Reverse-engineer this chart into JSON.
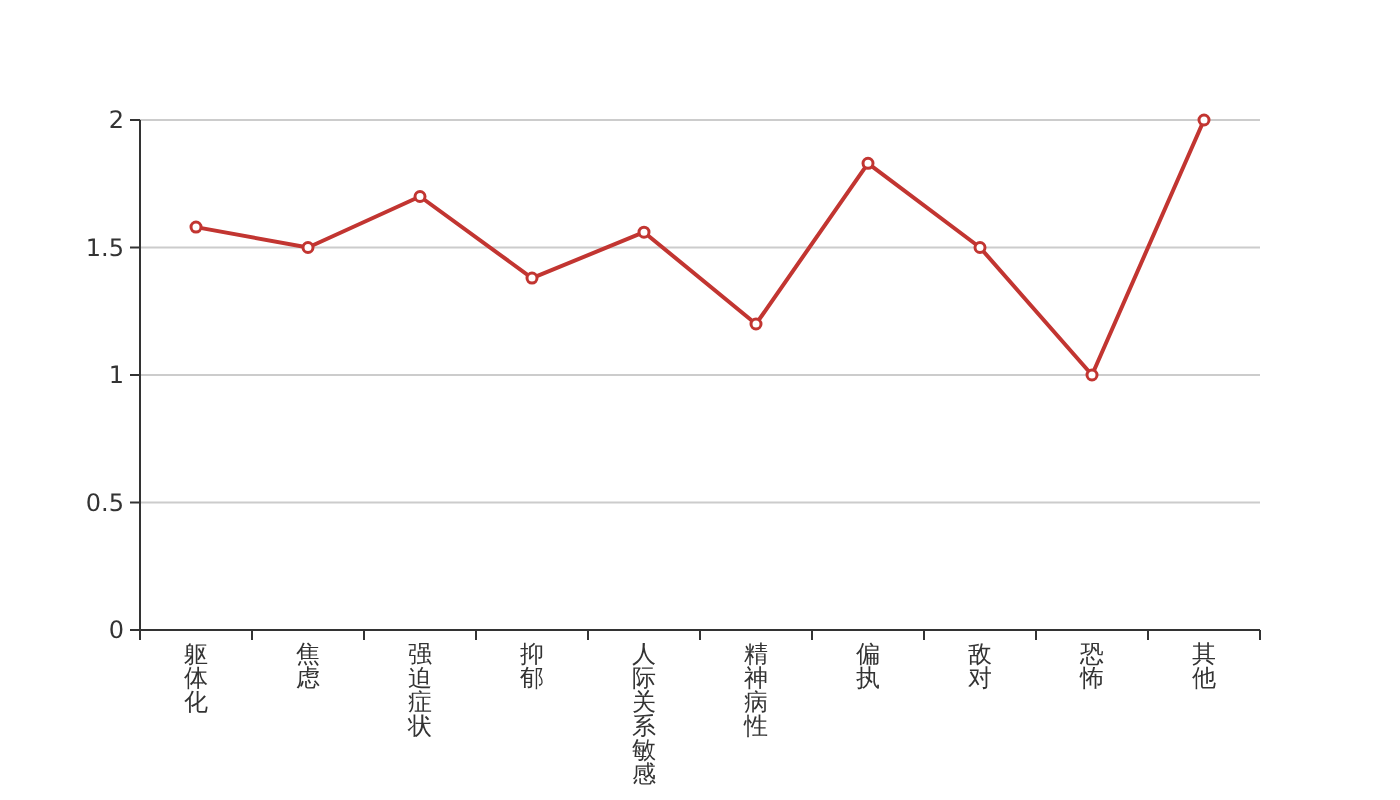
{
  "chart_data": {
    "type": "line",
    "categories": [
      "躯体化",
      "焦虑",
      "强迫症状",
      "抑郁",
      "人际关系敏感",
      "精神病性",
      "偏执",
      "敌对",
      "恐怖",
      "其他"
    ],
    "series": [
      {
        "color": "#c23531",
        "values": [
          1.58,
          1.5,
          1.7,
          1.38,
          1.56,
          1.2,
          1.83,
          1.5,
          1.0,
          2.0
        ]
      }
    ],
    "ylim": [
      0,
      2
    ],
    "yticks": [
      0,
      0.5,
      1,
      1.5,
      2
    ],
    "grid": "y",
    "marker": "circle",
    "line_style": "solid"
  }
}
